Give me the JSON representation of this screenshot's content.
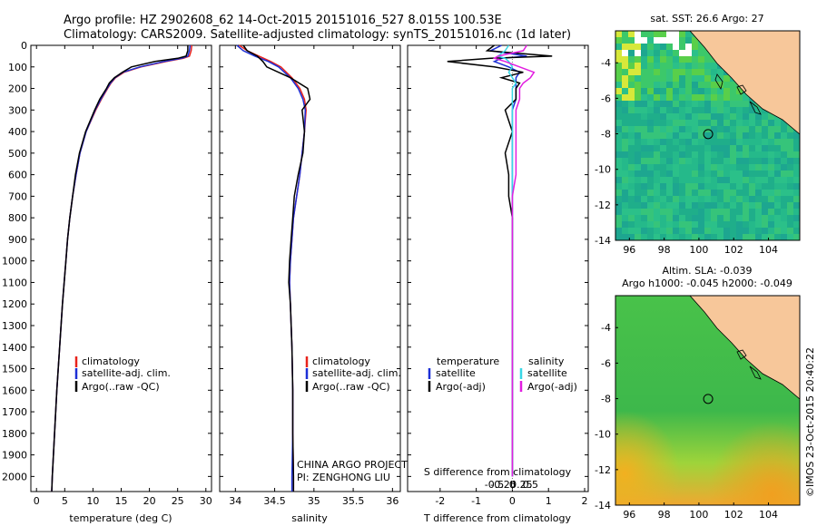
{
  "title": {
    "line1": "Argo profile: HZ 2902608_62 14-Oct-2015 20151016_527 8.015S 100.53E",
    "line2": "Climatology: CARS2009. Satellite-adjusted climatology: synTS_20151016.nc (1d later)"
  },
  "colors": {
    "climatology": "#e8231c",
    "satellite": "#1d2fd6",
    "argo": "#000000",
    "argo_salinity_diff": "#e21de0",
    "satellite_salinity_diff": "#39d7e6",
    "land": "#f7c79a"
  },
  "chart_data": [
    {
      "id": "temperature",
      "type": "line",
      "xlabel": "temperature (deg C)",
      "xlim": [
        -1,
        31
      ],
      "xticks": [
        "0",
        "5",
        "10",
        "15",
        "20",
        "25",
        "30"
      ],
      "xtick_values": [
        0,
        5,
        10,
        15,
        20,
        25,
        30
      ],
      "ylim": [
        0,
        2070
      ],
      "yticks": [
        "0",
        "100",
        "200",
        "300",
        "400",
        "500",
        "600",
        "700",
        "800",
        "900",
        "1000",
        "1100",
        "1200",
        "1300",
        "1400",
        "1500",
        "1600",
        "1700",
        "1800",
        "1900",
        "2000"
      ],
      "depth": [
        0,
        25,
        50,
        60,
        75,
        100,
        125,
        150,
        175,
        200,
        250,
        300,
        400,
        500,
        600,
        700,
        800,
        900,
        1000,
        1200,
        1400,
        1600,
        1800,
        2000,
        2070
      ],
      "series": [
        {
          "name": "climatology",
          "values": [
            27.5,
            27.4,
            27.1,
            26.0,
            23.0,
            18.5,
            15.5,
            14.0,
            13.2,
            12.6,
            11.5,
            10.5,
            8.8,
            7.7,
            7.0,
            6.4,
            5.9,
            5.5,
            5.2,
            4.6,
            4.1,
            3.6,
            3.2,
            2.8,
            2.7
          ]
        },
        {
          "name": "satellite-adj. clim.",
          "values": [
            27.2,
            27.1,
            26.8,
            25.7,
            22.6,
            18.3,
            15.3,
            13.9,
            13.1,
            12.5,
            11.4,
            10.4,
            8.8,
            7.7,
            7.0,
            6.4,
            5.9,
            5.5,
            5.2,
            4.6,
            4.1,
            3.6,
            3.2,
            2.8,
            2.7
          ]
        },
        {
          "name": "Argo(..raw -QC)",
          "values": [
            26.8,
            26.8,
            26.5,
            25.0,
            21.0,
            16.8,
            15.2,
            13.8,
            12.9,
            12.4,
            11.2,
            10.3,
            8.7,
            7.6,
            6.9,
            6.4,
            5.9,
            5.5,
            5.2,
            4.6,
            4.1,
            3.6,
            3.2,
            2.8,
            2.7
          ]
        }
      ],
      "legend": [
        "climatology",
        "satellite-adj. clim.",
        "Argo(..raw -QC)"
      ]
    },
    {
      "id": "salinity",
      "type": "line",
      "xlabel": "salinity",
      "xlim": [
        33.8,
        36.1
      ],
      "xticks": [
        "34",
        "34.5",
        "35",
        "35.5",
        "36"
      ],
      "xtick_values": [
        34,
        34.5,
        35,
        35.5,
        36
      ],
      "ylim": [
        0,
        2070
      ],
      "depth": [
        0,
        25,
        50,
        75,
        100,
        150,
        200,
        250,
        300,
        400,
        500,
        600,
        700,
        800,
        900,
        1000,
        1100,
        1200,
        1400,
        1600,
        1800,
        2000,
        2070
      ],
      "series": [
        {
          "name": "climatology",
          "values": [
            34.05,
            34.15,
            34.3,
            34.45,
            34.58,
            34.72,
            34.82,
            34.88,
            34.9,
            34.88,
            34.85,
            34.82,
            34.78,
            34.74,
            34.72,
            34.7,
            34.69,
            34.7,
            34.72,
            34.73,
            34.73,
            34.74,
            34.74
          ]
        },
        {
          "name": "satellite-adj. clim.",
          "values": [
            34.02,
            34.1,
            34.25,
            34.42,
            34.55,
            34.7,
            34.8,
            34.86,
            34.89,
            34.88,
            34.85,
            34.82,
            34.78,
            34.74,
            34.72,
            34.7,
            34.69,
            34.7,
            34.72,
            34.73,
            34.73,
            34.72,
            34.72
          ]
        },
        {
          "name": "Argo(..raw -QC)",
          "values": [
            34.1,
            34.15,
            34.28,
            34.35,
            34.4,
            34.7,
            34.92,
            34.95,
            34.85,
            34.88,
            34.86,
            34.8,
            34.75,
            34.73,
            34.71,
            34.69,
            34.68,
            34.7,
            34.72,
            34.73,
            34.73,
            34.74,
            34.74
          ]
        }
      ],
      "legend": [
        "climatology",
        "satellite-adj. clim.",
        "Argo(..raw -QC)"
      ],
      "annotations": [
        "CHINA ARGO PROJECT",
        "PI: ZENGHONG LIU"
      ]
    },
    {
      "id": "differences",
      "type": "line",
      "xlabel": "T difference from climatology",
      "xlabel_top": "S difference from climatology",
      "xlim": [
        -2.9,
        2.1
      ],
      "xticks": [
        "-2",
        "-1",
        "0",
        "1",
        "2"
      ],
      "xtick_values": [
        -2,
        -1,
        0,
        1,
        2
      ],
      "s_ticks": [
        "-0.5",
        "-0.25",
        "0",
        "0.25",
        "0.5"
      ],
      "s_tick_values": [
        -0.5,
        -0.25,
        0,
        0.25,
        0.5
      ],
      "ylim": [
        0,
        2070
      ],
      "depth": [
        0,
        25,
        50,
        60,
        75,
        100,
        125,
        150,
        175,
        200,
        250,
        300,
        400,
        500,
        600,
        700,
        800,
        900,
        1000,
        1100,
        1200,
        1400,
        1600,
        1800,
        2000
      ],
      "series": [
        {
          "name": "temperature satellite",
          "values": [
            -0.3,
            -0.6,
            0.4,
            -0.3,
            -0.5,
            -0.1,
            0.2,
            0.1,
            0.1,
            0.1,
            0.1,
            0.0,
            0.0,
            0.0,
            0.0,
            0.0,
            0.0,
            0.0,
            0.0,
            0.0,
            0.0,
            0.0,
            0.0,
            0.0,
            0.0
          ]
        },
        {
          "name": "temperature Argo(-adj)",
          "values": [
            -0.5,
            -0.7,
            1.1,
            -0.6,
            -1.8,
            -0.5,
            0.3,
            -0.3,
            0.2,
            0.1,
            0.1,
            -0.2,
            0.0,
            -0.2,
            -0.1,
            -0.1,
            0.0,
            0.0,
            0.0,
            0.0,
            0.0,
            0.0,
            0.0,
            0.0,
            0.0
          ]
        },
        {
          "name": "salinity satellite",
          "values": [
            -0.1,
            -0.2,
            -0.4,
            -0.2,
            -0.1,
            0.0,
            -0.1,
            0.0,
            0.1,
            0.0,
            0.0,
            0.0,
            0.0,
            0.0,
            0.0,
            0.0,
            0.0,
            0.0,
            0.0,
            0.0,
            0.0,
            0.0,
            0.0,
            0.0,
            0.0
          ]
        },
        {
          "name": "salinity Argo(-adj)",
          "values": [
            0.4,
            0.3,
            -0.4,
            -0.5,
            -0.2,
            0.2,
            0.6,
            0.5,
            0.3,
            0.2,
            0.2,
            0.1,
            0.1,
            0.1,
            0.1,
            0.0,
            0.0,
            0.0,
            0.0,
            0.0,
            0.0,
            0.0,
            0.0,
            0.0,
            0.0
          ]
        }
      ],
      "legend_headers": [
        "temperature",
        "salinity"
      ],
      "legend": [
        "satellite",
        "Argo(-adj)",
        "satellite",
        "Argo(-adj)"
      ]
    },
    {
      "id": "sst-map",
      "type": "heatmap",
      "title": "sat. SST: 26.6 Argo: 27",
      "xticks": [
        "96",
        "98",
        "100",
        "102",
        "104"
      ],
      "xtick_values": [
        96,
        98,
        100,
        102,
        104
      ],
      "yticks": [
        "-4",
        "-6",
        "-8",
        "-10",
        "-12",
        "-14"
      ],
      "ytick_values": [
        -4,
        -6,
        -8,
        -10,
        -12,
        -14
      ],
      "xlim": [
        95.2,
        105.8
      ],
      "ylim": [
        -14,
        -2.2
      ],
      "argo_position": [
        100.53,
        -8.015
      ]
    },
    {
      "id": "sla-map",
      "type": "heatmap",
      "title_line1": "Altim. SLA: -0.039",
      "title_line2": "Argo h1000: -0.045 h2000: -0.049",
      "xticks": [
        "96",
        "98",
        "100",
        "102",
        "104"
      ],
      "xtick_values": [
        96,
        98,
        100,
        102,
        104
      ],
      "yticks": [
        "-4",
        "-6",
        "-8",
        "-10",
        "-12",
        "-14"
      ],
      "ytick_values": [
        -4,
        -6,
        -8,
        -10,
        -12,
        -14
      ],
      "xlim": [
        95.2,
        105.8
      ],
      "ylim": [
        -14,
        -2.2
      ],
      "argo_position": [
        100.53,
        -8.015
      ]
    }
  ],
  "watermark": "©IMOS 23-Oct-2015 20:40:22"
}
